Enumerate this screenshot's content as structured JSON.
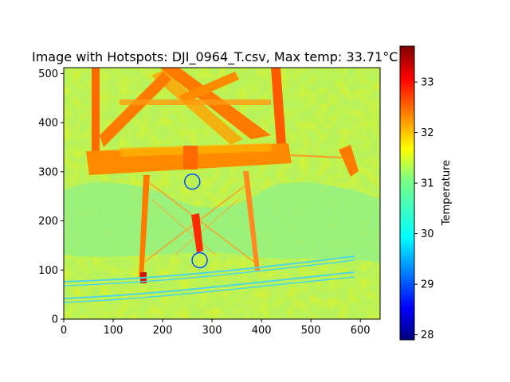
{
  "chart_data": {
    "type": "heatmap",
    "title": "Image with Hotspots: DJI_0964_T.csv, Max temp: 33.71°C",
    "xlim": [
      0,
      640
    ],
    "ylim": [
      0,
      512
    ],
    "x_ticks": [
      "0",
      "100",
      "200",
      "300",
      "400",
      "500",
      "600"
    ],
    "y_ticks": [
      "0",
      "100",
      "200",
      "300",
      "400",
      "500"
    ],
    "colorbar": {
      "label": "Temperature",
      "range": [
        27.9,
        33.71
      ],
      "ticks": [
        "28",
        "29",
        "30",
        "31",
        "32",
        "33"
      ],
      "colormap": "jet"
    },
    "hotspots": [
      {
        "x": 260,
        "y": 280
      },
      {
        "x": 275,
        "y": 120
      }
    ]
  }
}
